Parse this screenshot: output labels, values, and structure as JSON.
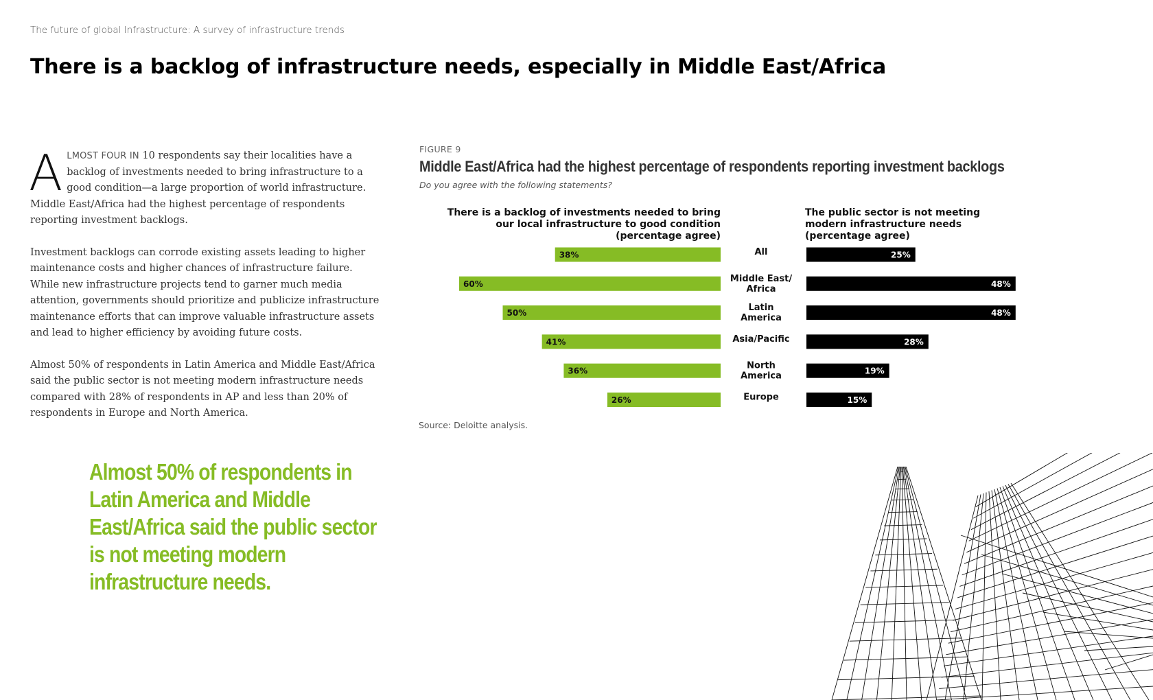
{
  "header": {
    "eyebrow": "The future of global Infrastructure: A survey of infrastructure trends",
    "headline": "There is a backlog of infrastructure needs, especially in Middle East/Africa"
  },
  "body": {
    "dropcap": "A",
    "lead_smallcaps": "LMOST FOUR IN",
    "lead_rest": " 10 respondents say their localities have a backlog of investments needed to bring infrastructure to a good condition—a large proportion of world infrastructure. Middle East/Africa had the highest percentage of respondents reporting investment backlogs.",
    "paragraph2": "Investment backlogs can corrode existing assets leading to higher maintenance costs and higher chances of infrastructure failure. While new infrastructure projects tend to garner much media attention, governments should prioritize and publicize infrastructure maintenance efforts that can improve valuable infrastructure assets and lead to higher efficiency by avoiding future costs.",
    "paragraph3": "Almost 50% of respondents in Latin America and Middle East/Africa said the public sector is not meeting modern infrastructure needs compared with 28% of respondents in AP and less than 20% of respondents in Europe and North America."
  },
  "pullquote": "Almost 50% of respondents in Latin America and Middle East/Africa said the public sector is not meeting modern infrastructure needs.",
  "figure": {
    "label": "FIGURE 9",
    "title": "Middle East/Africa had the highest percentage of respondents reporting investment backlogs",
    "subtitle": "Do you agree with the following statements?",
    "source": "Source: Deloitte analysis."
  },
  "chart_data": {
    "type": "bar",
    "orientation": "horizontal",
    "layout": "butterfly",
    "categories": [
      [
        "All"
      ],
      [
        "Middle East/",
        "Africa"
      ],
      [
        "Latin",
        "America"
      ],
      [
        "Asia/Pacific"
      ],
      [
        "North",
        "America"
      ],
      [
        "Europe"
      ]
    ],
    "series": [
      {
        "name_lines": [
          "There is a backlog of investments needed to bring",
          "our local infrastructure to good condition",
          "(percentage agree)"
        ],
        "values": [
          38,
          60,
          50,
          41,
          36,
          26
        ],
        "color": "#86bc25",
        "direction": "left"
      },
      {
        "name_lines": [
          "The public sector is not meeting",
          "modern infrastructure needs",
          "(percentage agree)"
        ],
        "values": [
          25,
          48,
          48,
          28,
          19,
          15
        ],
        "color": "#000000",
        "direction": "right"
      }
    ],
    "value_suffix": "%",
    "grid": false
  },
  "colors": {
    "accent_green": "#86bc25",
    "bar_black": "#000000"
  }
}
